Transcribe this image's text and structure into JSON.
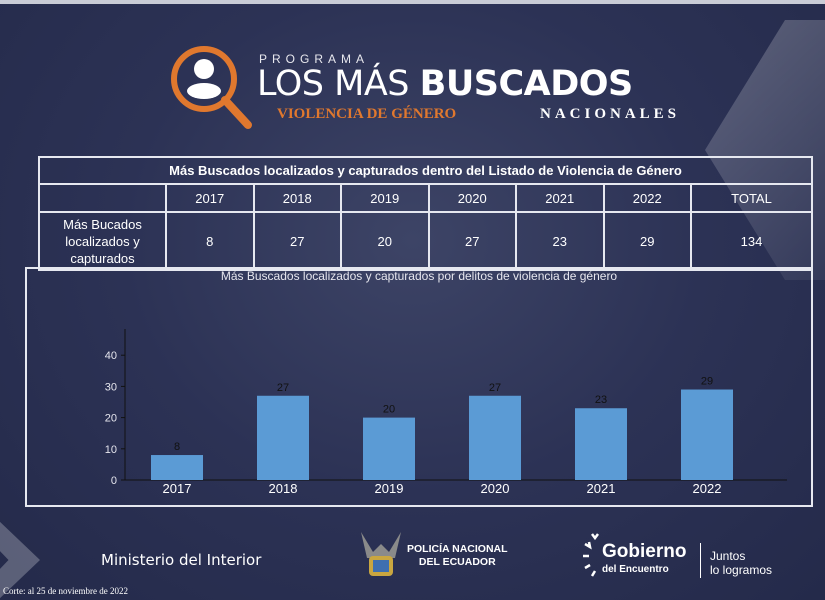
{
  "header": {
    "program": "PROGRAMA",
    "title_light": "LOS MÁS",
    "title_bold": "BUSCADOS",
    "subtitle": "VIOLENCIA DE GÉNERO",
    "scope": "NACIONALES"
  },
  "table": {
    "title": "Más Buscados localizados y capturados dentro del Listado de Violencia de Género",
    "columns": [
      "2017",
      "2018",
      "2019",
      "2020",
      "2021",
      "2022",
      "TOTAL"
    ],
    "row_label": "Más Bucados localizados y capturados",
    "values": [
      "8",
      "27",
      "20",
      "27",
      "23",
      "29",
      "134"
    ]
  },
  "chart_data": {
    "type": "bar",
    "title": "Más Buscados localizados y capturados por delitos de violencia de género",
    "categories": [
      "2017",
      "2018",
      "2019",
      "2020",
      "2021",
      "2022"
    ],
    "values": [
      8,
      27,
      20,
      27,
      23,
      29
    ],
    "yticks": [
      0,
      10,
      20,
      30,
      40
    ],
    "ylim": [
      0,
      50
    ],
    "grid": false,
    "bar_color": "#5b9bd5"
  },
  "footer": {
    "ministry": "Ministerio del Interior",
    "police_line1": "POLICÍA NACIONAL",
    "police_line2": "DEL ECUADOR",
    "gov_main": "Gobierno",
    "gov_sub": "del Encuentro",
    "slogan_line1": "Juntos",
    "slogan_line2": "lo logramos",
    "cutoff": "Corte: al 25 de noviembre de 2022"
  },
  "colors": {
    "accent": "#e0782e",
    "background": "#2c3255"
  }
}
